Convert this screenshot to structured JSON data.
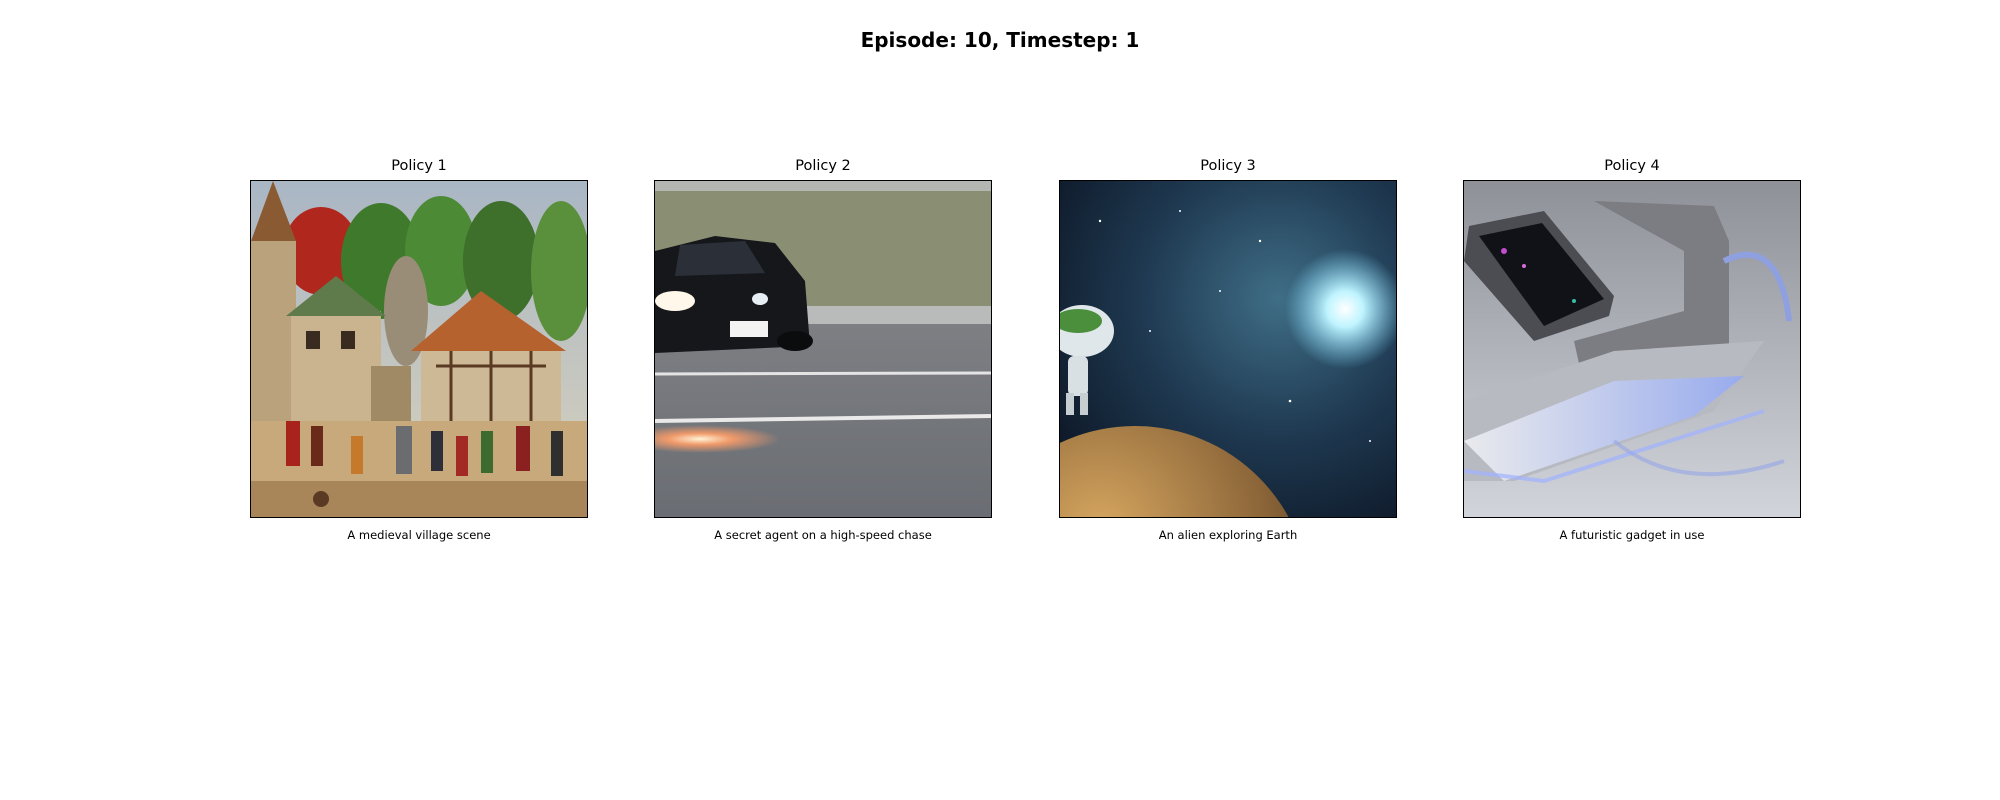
{
  "figure": {
    "title": "Episode: 10, Timestep: 1"
  },
  "panels": [
    {
      "title": "Policy 1",
      "caption": "A medieval village scene",
      "image": "medieval-village-painting-image"
    },
    {
      "title": "Policy 2",
      "caption": "A secret agent on a high-speed chase",
      "image": "speeding-car-on-road-image"
    },
    {
      "title": "Policy 3",
      "caption": "An alien exploring Earth",
      "image": "alien-on-planet-in-space-image"
    },
    {
      "title": "Policy 4",
      "caption": "A futuristic gadget in use",
      "image": "futuristic-gadget-image"
    }
  ]
}
